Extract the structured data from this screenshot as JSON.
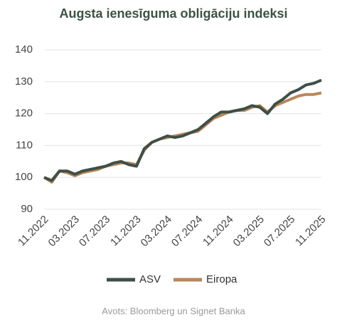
{
  "chart_data": {
    "type": "line",
    "title": "Augsta ienesīguma obligāciju indeksi",
    "source": "Avots: Bloomberg un Signet Banka",
    "categories": [
      "11.2022",
      null,
      null,
      null,
      "03.2023",
      null,
      null,
      null,
      "07.2023",
      null,
      null,
      null,
      "11.2023",
      null,
      null,
      null,
      "03.2024",
      null,
      null,
      null,
      "07.2024",
      null,
      null,
      null,
      "11.2024",
      null,
      null,
      null,
      "03.2025",
      null,
      null,
      null,
      "07.2025",
      null,
      null,
      null,
      "11.2025"
    ],
    "series": [
      {
        "name": "ASV",
        "color": "#3e4f47",
        "values": [
          100,
          99,
          102,
          102,
          101,
          102,
          102.5,
          103,
          103.5,
          104.5,
          105,
          104,
          103.5,
          109,
          111,
          112,
          113,
          112.5,
          113,
          114,
          115,
          117,
          119,
          120.5,
          120.5,
          121,
          121.5,
          122.5,
          122,
          120,
          123,
          124.5,
          126.5,
          127.5,
          129,
          129.5,
          130.5
        ]
      },
      {
        "name": "Eiropa",
        "color": "#b8875a",
        "values": [
          100,
          98.5,
          102,
          101.5,
          100.5,
          101.5,
          102,
          102.5,
          103.5,
          104,
          104.5,
          104.5,
          104,
          108.5,
          111,
          112,
          112.5,
          113,
          113.5,
          114,
          114.5,
          116.5,
          118.5,
          119.5,
          120.5,
          121,
          121,
          122,
          122.5,
          120.5,
          122.5,
          123.5,
          124.5,
          125.5,
          126,
          126,
          126.5
        ]
      }
    ],
    "ylim": [
      90,
      140
    ],
    "yticks": [
      90,
      100,
      110,
      120,
      130,
      140
    ],
    "grid": true,
    "legend": "bottom"
  }
}
